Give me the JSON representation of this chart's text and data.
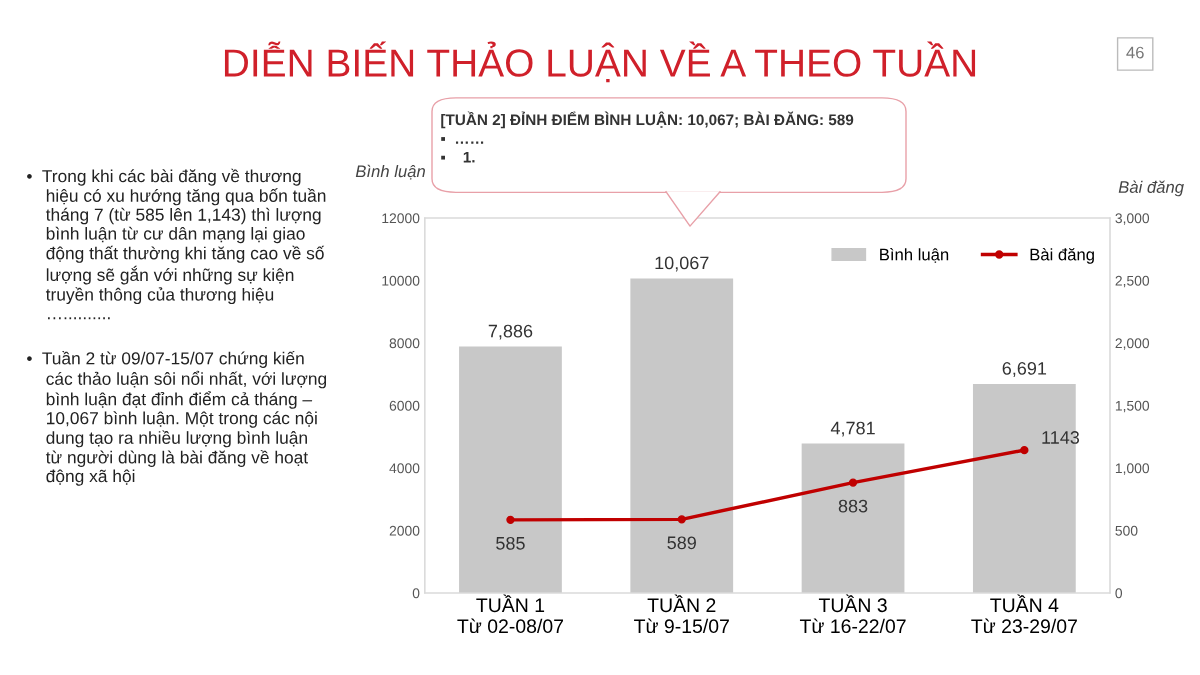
{
  "chart_data": {
    "type": "bar",
    "title": "DIỄN BIẾN THẢO LUẬN VỀ A THEO TUẦN",
    "categories": [
      "TUẦN 1\nTừ 02-08/07",
      "TUẦN 2\nTừ 9-15/07",
      "TUẦN 3\nTừ 16-22/07",
      "TUẦN 4\nTừ 23-29/07"
    ],
    "series": [
      {
        "name": "Bình luận",
        "color": "#c8c8c8",
        "values": [
          7886,
          10067,
          4781,
          6691
        ],
        "value_labels": [
          "7,886",
          "10,067",
          "4,781",
          "6,691"
        ]
      },
      {
        "name": "Bài đăng",
        "type": "line",
        "axis": "y2",
        "color": "#c00000",
        "values": [
          585,
          589,
          883,
          1143
        ],
        "value_labels": [
          "585",
          "589",
          "883",
          "1143"
        ]
      }
    ],
    "ylabel": "Bình luận",
    "y2label": "Bài đăng",
    "ylim": [
      0,
      12000
    ],
    "yticks": [
      0,
      2000,
      4000,
      6000,
      8000,
      10000,
      12000
    ],
    "y2lim": [
      0,
      3000
    ],
    "y2ticks": [
      0,
      {
        "value": 500,
        "label": "500"
      },
      {
        "value": 1000,
        "label": "1,000"
      },
      {
        "value": 1500,
        "label": "1,500"
      },
      {
        "value": 2000,
        "label": "2,000"
      },
      {
        "value": 2500,
        "label": "2,500"
      },
      {
        "value": 3000,
        "label": "3,000"
      }
    ],
    "legend": "top right",
    "grid": false,
    "marker": "circle",
    "annotations": [
      "[TUẦN 2] ĐỈNH ĐIỂM BÌNH LUẬN: 10,067; BÀI ĐĂNG: 589\n▪  ……\n▪    1.",
      "•  Trong khi các bài đăng về thương\n    hiệu có xu hướng tăng qua bốn tuần\n    tháng 7 (từ 585 lên 1,143) thì lượng\n    bình luận từ cư dân mạng lại giao\n    động thất thường khi tăng cao về số\n    lượng sẽ gắn với những sự kiện\n    truyền thông của thương hiệu\n    …..........",
      "•  Tuần 2 từ 09/07-15/07 chứng kiến\n    các thảo luận sôi nổi nhất, với lượng\n    bình luận đạt đỉnh điểm cả tháng –\n    10,067 bình luận. Một trong các nội\n    dung tạo ra nhiều lượng bình luận\n    từ người dùng là bài đăng về hoạt\n    động xã hội",
      "46"
    ]
  }
}
